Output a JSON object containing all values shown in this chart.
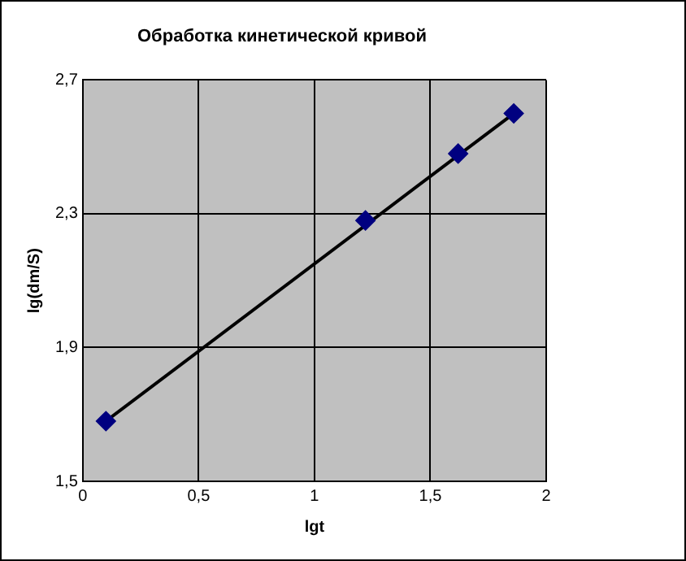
{
  "chart_data": {
    "type": "scatter",
    "title": "Обработка кинетической кривой",
    "xlabel": "lgt",
    "ylabel": "lg(dm/S)",
    "x": [
      0.1,
      1.22,
      1.62,
      1.86
    ],
    "series": [
      {
        "type": "scatter",
        "color": "#000080",
        "marker": "diamond",
        "values": [
          1.68,
          2.28,
          2.48,
          2.6
        ]
      },
      {
        "type": "line",
        "color": "#000000",
        "marker": "none",
        "x": [
          0.1,
          1.86
        ],
        "values": [
          1.68,
          2.6
        ]
      }
    ],
    "xlim": [
      0,
      2
    ],
    "xticks": [
      0,
      {
        "value": 0.5,
        "label": "0,5"
      },
      1,
      {
        "value": 1.5,
        "label": "1,5"
      },
      2
    ],
    "ylim": [
      1.5,
      2.7
    ],
    "yticks": [
      {
        "value": 1.5,
        "label": "1,5"
      },
      {
        "value": 1.9,
        "label": "1,9"
      },
      {
        "value": 2.3,
        "label": "2,3"
      },
      {
        "value": 2.7,
        "label": "2,7"
      }
    ],
    "grid": true,
    "legend": false
  }
}
